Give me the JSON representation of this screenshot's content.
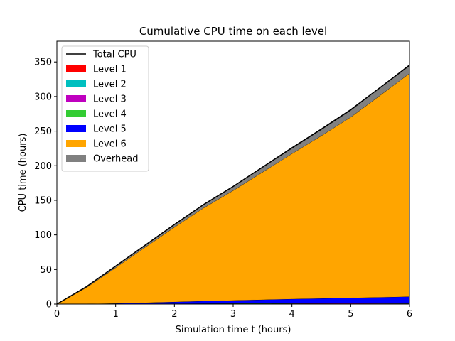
{
  "chart_data": {
    "type": "area",
    "title": "Cumulative CPU time on each level",
    "xlabel": "Simulation time t (hours)",
    "ylabel": "CPU time (hours)",
    "xlim": [
      0,
      6
    ],
    "ylim": [
      0,
      380
    ],
    "xticks": [
      0,
      1,
      2,
      3,
      4,
      5,
      6
    ],
    "yticks": [
      0,
      50,
      100,
      150,
      200,
      250,
      300,
      350
    ],
    "grid": false,
    "legend_position": "top-left",
    "stacked": true,
    "x": [
      0,
      0.5,
      1,
      1.5,
      2,
      2.5,
      3,
      3.5,
      4,
      4.5,
      5,
      5.5,
      6
    ],
    "series": [
      {
        "name": "Level 1",
        "color": "#ff0000",
        "values": [
          0,
          0.05,
          0.1,
          0.15,
          0.2,
          0.25,
          0.3,
          0.35,
          0.4,
          0.45,
          0.5,
          0.55,
          0.6
        ]
      },
      {
        "name": "Level 2",
        "color": "#00bfbf",
        "values": [
          0,
          0.05,
          0.1,
          0.15,
          0.2,
          0.25,
          0.3,
          0.35,
          0.4,
          0.45,
          0.5,
          0.55,
          0.6
        ]
      },
      {
        "name": "Level 3",
        "color": "#bf00bf",
        "values": [
          0,
          0.05,
          0.1,
          0.15,
          0.2,
          0.25,
          0.3,
          0.35,
          0.4,
          0.45,
          0.5,
          0.55,
          0.6
        ]
      },
      {
        "name": "Level 4",
        "color": "#33cc33",
        "values": [
          0,
          0.05,
          0.1,
          0.15,
          0.2,
          0.25,
          0.3,
          0.35,
          0.4,
          0.45,
          0.5,
          0.55,
          0.6
        ]
      },
      {
        "name": "Level 5",
        "color": "#0000ff",
        "values": [
          0,
          0.3,
          0.8,
          1.7,
          2.6,
          3.6,
          4.4,
          5.2,
          6.0,
          6.6,
          7.3,
          7.9,
          8.6
        ]
      },
      {
        "name": "Level 6",
        "color": "#ffa500",
        "values": [
          0,
          23.5,
          51.7,
          80,
          108,
          134.8,
          158.8,
          184.4,
          210,
          235.2,
          261.2,
          291.9,
          322.8
        ]
      },
      {
        "name": "Overhead",
        "color": "#808080",
        "values": [
          0,
          1.0,
          2.0,
          2.8,
          3.8,
          4.8,
          5.8,
          6.8,
          7.8,
          8.8,
          9.8,
          11.0,
          12.0
        ]
      }
    ],
    "total": {
      "name": "Total CPU",
      "color": "#000000",
      "values": [
        0,
        25,
        55,
        85,
        115,
        144,
        170,
        198,
        226,
        253,
        281,
        313,
        345
      ]
    }
  }
}
